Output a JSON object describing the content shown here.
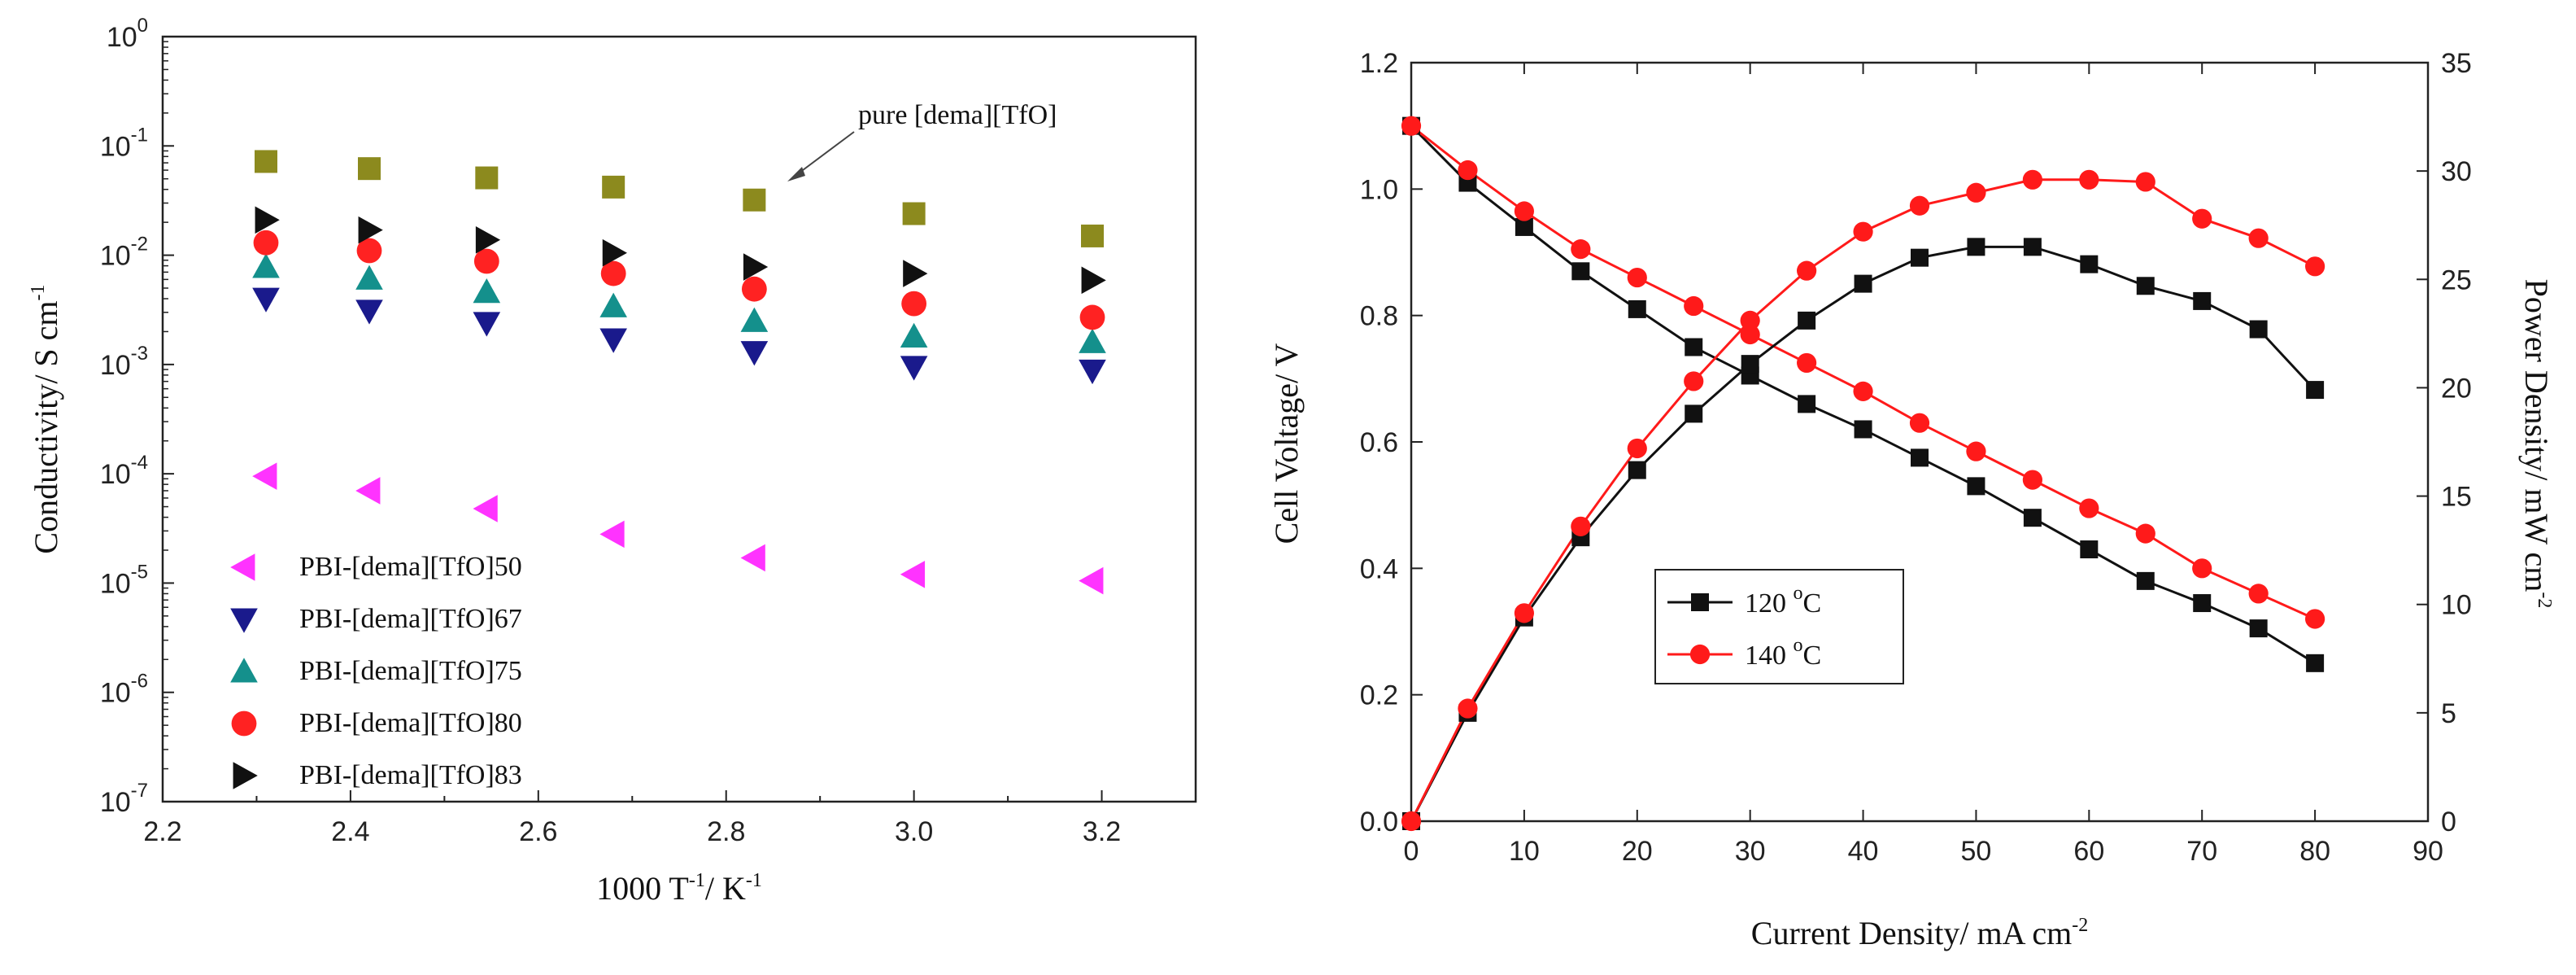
{
  "chart_data": [
    {
      "type": "scatter",
      "x_scale": "linear",
      "y_scale": "log",
      "xlabel": "1000 T",
      "xlabel_sup": "-1",
      "xlabel_tail": "/ K",
      "xlabel_tail_sup": "-1",
      "ylabel": "Conductivity/ S cm",
      "ylabel_sup": "-1",
      "xlim": [
        2.2,
        3.3
      ],
      "ylim_exp": [
        -7,
        0
      ],
      "x_ticks": [
        2.2,
        2.4,
        2.6,
        2.8,
        3.0,
        3.2
      ],
      "x_tick_labels": [
        "2.2",
        "2.4",
        "2.6",
        "2.8",
        "3.0",
        "3.2"
      ],
      "y_tick_exponents": [
        "0",
        "-1",
        "-2",
        "-3",
        "-4",
        "-5",
        "-6",
        "-7"
      ],
      "y_tick_base": "10",
      "legend_position": "bottom-left",
      "annotation": {
        "text": "pure [dema][TfO]",
        "points_to": [
          2.84,
          0.032
        ]
      },
      "series": [
        {
          "name": "PBI-[dema][TfO]50",
          "marker": "triangle-left",
          "color": "#ff33ff",
          "x": [
            2.31,
            2.42,
            2.545,
            2.68,
            2.83,
            3.0,
            3.19
          ],
          "y": [
            9.5e-05,
            7e-05,
            4.8e-05,
            2.8e-05,
            1.7e-05,
            1.2e-05,
            1.05e-05
          ]
        },
        {
          "name": "PBI-[dema][TfO]67",
          "marker": "triangle-down",
          "color": "#1a1a8c",
          "x": [
            2.31,
            2.42,
            2.545,
            2.68,
            2.83,
            3.0,
            3.19
          ],
          "y": [
            0.004,
            0.0031,
            0.0024,
            0.0017,
            0.0013,
            0.00095,
            0.00088
          ]
        },
        {
          "name": "PBI-[dema][TfO]75",
          "marker": "triangle-up",
          "color": "#14908c",
          "x": [
            2.31,
            2.42,
            2.545,
            2.68,
            2.83,
            3.0,
            3.19
          ],
          "y": [
            0.0078,
            0.0061,
            0.0046,
            0.0034,
            0.0025,
            0.0018,
            0.0016
          ]
        },
        {
          "name": "PBI-[dema][TfO]80",
          "marker": "circle",
          "color": "#ff2222",
          "x": [
            2.31,
            2.42,
            2.545,
            2.68,
            2.83,
            3.0,
            3.19
          ],
          "y": [
            0.013,
            0.011,
            0.0088,
            0.0068,
            0.0049,
            0.0036,
            0.0027
          ]
        },
        {
          "name": "PBI-[dema][TfO]83",
          "marker": "triangle-right",
          "color": "#111111",
          "x": [
            2.31,
            2.42,
            2.545,
            2.68,
            2.83,
            3.0,
            3.19
          ],
          "y": [
            0.021,
            0.017,
            0.0138,
            0.0105,
            0.0078,
            0.0068,
            0.0059
          ]
        },
        {
          "name": "pure [dema][TfO]",
          "marker": "square",
          "color": "#8c8a1e",
          "in_legend": false,
          "x": [
            2.31,
            2.42,
            2.545,
            2.68,
            2.83,
            3.0,
            3.19
          ],
          "y": [
            0.072,
            0.062,
            0.051,
            0.042,
            0.032,
            0.024,
            0.015
          ]
        }
      ]
    },
    {
      "type": "line",
      "dual_axis": true,
      "xlabel": "Current Density/ mA cm",
      "xlabel_sup": "-2",
      "ylabel": "Cell Voltage/ V",
      "y2label": "Power Density/ mW cm",
      "y2label_sup": "-2",
      "xlim": [
        0,
        90
      ],
      "ylim": [
        0,
        1.2
      ],
      "y2lim": [
        0,
        35
      ],
      "x_tick_labels": [
        "0",
        "10",
        "20",
        "30",
        "40",
        "50",
        "60",
        "70",
        "80",
        "90"
      ],
      "y_tick_labels": [
        "0.0",
        "0.2",
        "0.4",
        "0.6",
        "0.8",
        "1.0",
        "1.2"
      ],
      "y2_tick_labels": [
        "0",
        "5",
        "10",
        "15",
        "20",
        "25",
        "30",
        "35"
      ],
      "legend_position": "center-left",
      "legend_deg": "o",
      "series": [
        {
          "name": "120",
          "legend_unit": "C",
          "marker": "square",
          "color": "#111111",
          "axis": "left",
          "kind": "voltage",
          "x": [
            0,
            5,
            10,
            15,
            20,
            25,
            30,
            35,
            40,
            45,
            50,
            55,
            60,
            65,
            70,
            75,
            80
          ],
          "y": [
            1.1,
            1.01,
            0.94,
            0.87,
            0.81,
            0.75,
            0.705,
            0.66,
            0.62,
            0.575,
            0.53,
            0.48,
            0.43,
            0.38,
            0.345,
            0.305,
            0.25
          ]
        },
        {
          "name": "140",
          "legend_unit": "C",
          "marker": "circle",
          "color": "#ff1a1a",
          "axis": "left",
          "kind": "voltage",
          "x": [
            0,
            5,
            10,
            15,
            20,
            25,
            30,
            35,
            40,
            45,
            50,
            55,
            60,
            65,
            70,
            75,
            80
          ],
          "y": [
            1.1,
            1.03,
            0.965,
            0.905,
            0.86,
            0.815,
            0.77,
            0.725,
            0.68,
            0.63,
            0.585,
            0.54,
            0.495,
            0.455,
            0.4,
            0.36,
            0.32
          ]
        },
        {
          "name": "120 power",
          "marker": "square",
          "color": "#111111",
          "axis": "right",
          "kind": "power",
          "x": [
            0,
            5,
            10,
            15,
            20,
            25,
            30,
            35,
            40,
            45,
            50,
            55,
            60,
            65,
            70,
            75,
            80
          ],
          "y": [
            0,
            5.0,
            9.4,
            13.1,
            16.2,
            18.8,
            21.1,
            23.1,
            24.8,
            26.0,
            26.5,
            26.5,
            25.7,
            24.7,
            24.0,
            22.7,
            19.9
          ]
        },
        {
          "name": "140 power",
          "marker": "circle",
          "color": "#ff1a1a",
          "axis": "right",
          "kind": "power",
          "x": [
            0,
            5,
            10,
            15,
            20,
            25,
            30,
            35,
            40,
            45,
            50,
            55,
            60,
            65,
            70,
            75,
            80
          ],
          "y": [
            0,
            5.2,
            9.6,
            13.6,
            17.2,
            20.3,
            23.1,
            25.4,
            27.2,
            28.4,
            29.0,
            29.6,
            29.6,
            29.5,
            27.8,
            26.9,
            25.6
          ]
        }
      ]
    }
  ]
}
